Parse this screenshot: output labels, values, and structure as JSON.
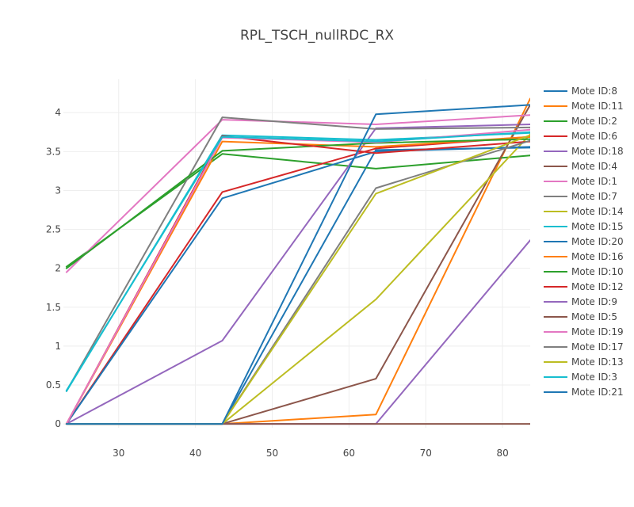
{
  "chart_data": {
    "type": "line",
    "title": "RPL_TSCH_nullRDC_RX",
    "xlabel": "",
    "ylabel": "",
    "xlim": [
      22.8,
      83.6
    ],
    "ylim": [
      -0.05,
      4.43
    ],
    "xticks": [
      30,
      40,
      50,
      60,
      70,
      80
    ],
    "yticks": [
      0,
      0.5,
      1,
      1.5,
      2,
      2.5,
      3,
      3.5,
      4
    ],
    "grid": true,
    "legend_position": "right",
    "series": [
      {
        "name": "Mote ID:8",
        "color": "#1f77b4",
        "x": [
          23.2,
          43.5,
          63.5,
          83.6
        ],
        "y": [
          0,
          0,
          3.52,
          3.55
        ]
      },
      {
        "name": "Mote ID:11",
        "color": "#ff7f0e",
        "x": [
          23.2,
          43.5,
          63.5,
          83.6
        ],
        "y": [
          0,
          0,
          0.12,
          4.18
        ]
      },
      {
        "name": "Mote ID:2",
        "color": "#2ca02c",
        "x": [
          23.2,
          43.5,
          63.5,
          83.6
        ],
        "y": [
          2.02,
          3.47,
          3.28,
          3.45
        ]
      },
      {
        "name": "Mote ID:6",
        "color": "#d62728",
        "x": [
          23.2,
          43.5,
          63.5,
          83.6
        ],
        "y": [
          0,
          2.98,
          3.54,
          3.69
        ]
      },
      {
        "name": "Mote ID:18",
        "color": "#9467bd",
        "x": [
          23.2,
          43.5,
          63.5,
          83.6
        ],
        "y": [
          0,
          1.07,
          3.8,
          3.85
        ]
      },
      {
        "name": "Mote ID:4",
        "color": "#8c564b",
        "x": [
          23.2,
          43.5,
          63.5,
          83.6
        ],
        "y": [
          0,
          0,
          0.58,
          4.1
        ]
      },
      {
        "name": "Mote ID:1",
        "color": "#e377c2",
        "x": [
          23.2,
          43.5,
          63.5,
          83.6
        ],
        "y": [
          1.95,
          3.91,
          3.85,
          3.97
        ]
      },
      {
        "name": "Mote ID:7",
        "color": "#7f7f7f",
        "x": [
          23.2,
          43.5,
          63.5,
          83.6
        ],
        "y": [
          0.42,
          3.94,
          3.79,
          3.81
        ]
      },
      {
        "name": "Mote ID:14",
        "color": "#bcbd22",
        "x": [
          23.2,
          43.5,
          63.5,
          83.6
        ],
        "y": [
          0,
          0,
          1.6,
          3.72
        ]
      },
      {
        "name": "Mote ID:15",
        "color": "#17becf",
        "x": [
          23.2,
          43.5,
          63.5,
          83.6
        ],
        "y": [
          0.42,
          3.71,
          3.65,
          3.74
        ]
      },
      {
        "name": "Mote ID:20",
        "color": "#1f77b4",
        "x": [
          23.2,
          43.5,
          63.5,
          83.6
        ],
        "y": [
          0,
          2.9,
          3.5,
          3.56
        ]
      },
      {
        "name": "Mote ID:16",
        "color": "#ff7f0e",
        "x": [
          23.2,
          43.5,
          63.5,
          83.6
        ],
        "y": [
          0,
          3.63,
          3.56,
          3.69
        ]
      },
      {
        "name": "Mote ID:10",
        "color": "#2ca02c",
        "x": [
          23.2,
          43.5,
          63.5,
          83.6
        ],
        "y": [
          2.0,
          3.51,
          3.61,
          3.66
        ]
      },
      {
        "name": "Mote ID:12",
        "color": "#d62728",
        "x": [
          23.2,
          43.5,
          63.5,
          83.6
        ],
        "y": [
          0,
          3.7,
          3.48,
          3.63
        ]
      },
      {
        "name": "Mote ID:9",
        "color": "#9467bd",
        "x": [
          23.2,
          43.5,
          63.5,
          83.6
        ],
        "y": [
          0,
          0,
          0,
          2.36
        ]
      },
      {
        "name": "Mote ID:5",
        "color": "#8c564b",
        "x": [
          23.2,
          43.5,
          63.5,
          83.6
        ],
        "y": [
          0,
          0,
          0,
          0
        ]
      },
      {
        "name": "Mote ID:19",
        "color": "#e377c2",
        "x": [
          23.2,
          43.5,
          63.5,
          83.6
        ],
        "y": [
          0,
          3.68,
          3.62,
          3.78
        ]
      },
      {
        "name": "Mote ID:17",
        "color": "#7f7f7f",
        "x": [
          23.2,
          43.5,
          63.5,
          83.6
        ],
        "y": [
          0,
          0,
          3.03,
          3.64
        ]
      },
      {
        "name": "Mote ID:13",
        "color": "#bcbd22",
        "x": [
          23.2,
          43.5,
          63.5,
          83.6
        ],
        "y": [
          0,
          0,
          2.96,
          3.71
        ]
      },
      {
        "name": "Mote ID:3",
        "color": "#17becf",
        "x": [
          23.2,
          43.5,
          63.5,
          83.6
        ],
        "y": [
          0.43,
          3.69,
          3.63,
          3.75
        ]
      },
      {
        "name": "Mote ID:21",
        "color": "#1f77b4",
        "x": [
          23.2,
          43.5,
          63.5,
          83.6
        ],
        "y": [
          0,
          0,
          3.98,
          4.1
        ]
      }
    ]
  }
}
